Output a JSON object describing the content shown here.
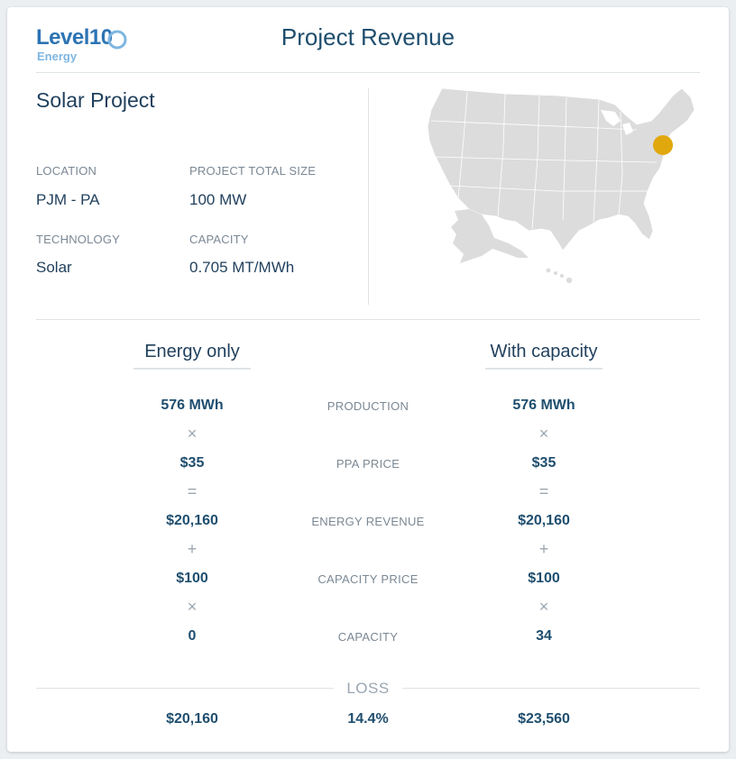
{
  "header": {
    "logo_text": "Level10",
    "logo_sub": "Energy",
    "title": "Project Revenue"
  },
  "project": {
    "name": "Solar Project",
    "fields": [
      {
        "label": "LOCATION",
        "value": "PJM - PA"
      },
      {
        "label": "PROJECT TOTAL SIZE",
        "value": "100 MW"
      },
      {
        "label": "TECHNOLOGY",
        "value": "Solar"
      },
      {
        "label": "CAPACITY",
        "value": "0.705 MT/MWh"
      }
    ]
  },
  "map": {
    "region": "United States",
    "marker_state": "Pennsylvania",
    "land_color": "#dcdcdc",
    "marker_color": "#e1a80e"
  },
  "comparison": {
    "left_header": "Energy only",
    "right_header": "With capacity",
    "rows": [
      {
        "left": "576 MWh",
        "label": "PRODUCTION",
        "right": "576 MWh"
      },
      {
        "op": "×"
      },
      {
        "left": "$35",
        "label": "PPA PRICE",
        "right": "$35"
      },
      {
        "op": "="
      },
      {
        "left": "$20,160",
        "label": "ENERGY REVENUE",
        "right": "$20,160"
      },
      {
        "op": "+"
      },
      {
        "left": "$100",
        "label": "CAPACITY PRICE",
        "right": "$100"
      },
      {
        "op": "×"
      },
      {
        "left": "0",
        "label": "CAPACITY",
        "right": "34"
      }
    ],
    "loss_label": "LOSS",
    "totals": {
      "left": "$20,160",
      "middle": "14.4%",
      "right": "$23,560"
    }
  },
  "colors": {
    "primary_text": "#1f3f5c",
    "muted_text": "#7b8894",
    "logo_blue": "#2d74b4"
  }
}
